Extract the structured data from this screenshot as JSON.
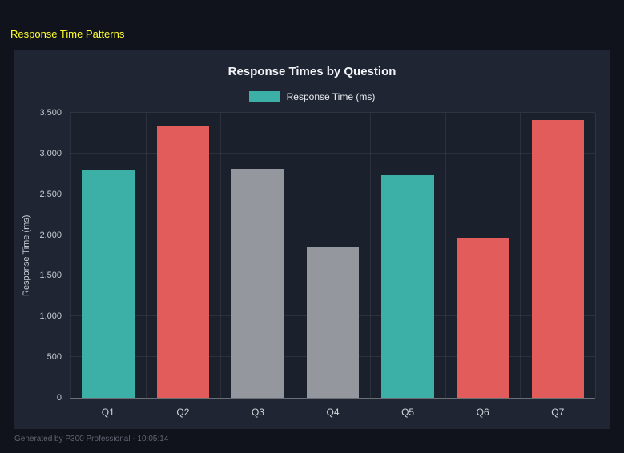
{
  "header": {
    "title": "Response Time Patterns"
  },
  "footer": {
    "text": "Generated by P300 Professional - 10:05:14"
  },
  "colors": {
    "background": "#11131c",
    "panel": "#1f2532",
    "accent_yellow": "#ffff2b",
    "teal": "#3cafa7",
    "red": "#e25c5c",
    "gray": "#94979e"
  },
  "chart_data": {
    "type": "bar",
    "title": "Response Times by Question",
    "categories": [
      "Q1",
      "Q2",
      "Q3",
      "Q4",
      "Q5",
      "Q6",
      "Q7"
    ],
    "values": [
      2800,
      3340,
      2810,
      1850,
      2730,
      1970,
      3410
    ],
    "bar_colors": [
      "#3cafa7",
      "#e25c5c",
      "#94979e",
      "#94979e",
      "#3cafa7",
      "#e25c5c",
      "#e25c5c"
    ],
    "xlabel": "",
    "ylabel": "Response Time (ms)",
    "ylim": [
      0,
      3500
    ],
    "ytick_step": 500,
    "grid": true,
    "legend_position": "top",
    "legend": [
      {
        "label": "Response Time (ms)",
        "color": "#3cafa7"
      }
    ]
  }
}
